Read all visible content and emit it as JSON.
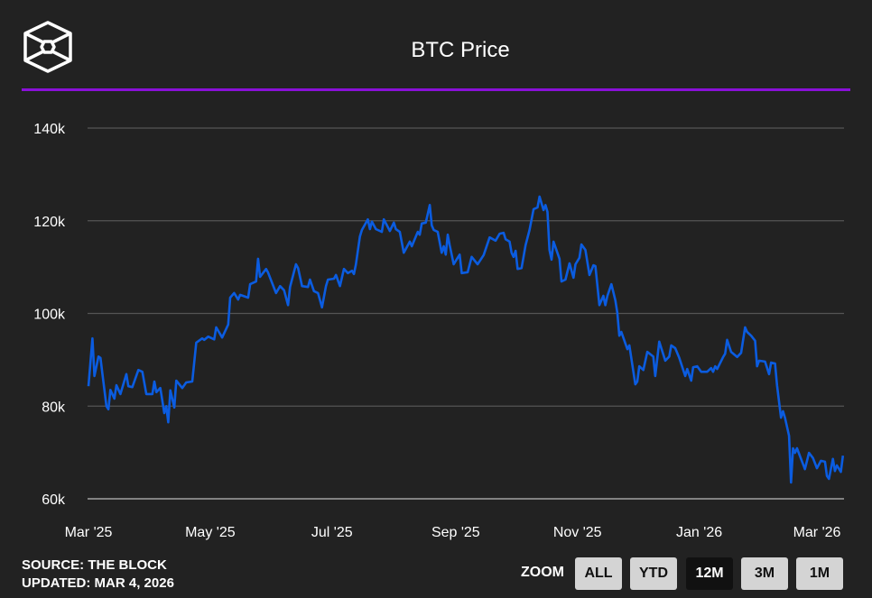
{
  "header": {
    "title": "BTC Price"
  },
  "colors": {
    "background": "#222222",
    "accent_rule": "#8a10d8",
    "line": "#0b5ce0",
    "grid": "#555555",
    "axis": "#bbbbbb"
  },
  "footer": {
    "source": "SOURCE: THE BLOCK",
    "updated": "UPDATED: MAR 4, 2026"
  },
  "zoom": {
    "label": "ZOOM",
    "buttons": [
      "ALL",
      "YTD",
      "12M",
      "3M",
      "1M"
    ],
    "selected": "12M"
  },
  "chart_data": {
    "type": "line",
    "title": "BTC Price",
    "xlabel": "",
    "ylabel": "",
    "x_unit": "days since Mar 1, 2025",
    "y_unit": "USD thousands",
    "ylim": [
      60,
      140
    ],
    "yticks": [
      {
        "value": 60,
        "label": "60k"
      },
      {
        "value": 80,
        "label": "80k"
      },
      {
        "value": 100,
        "label": "100k"
      },
      {
        "value": 120,
        "label": "120k"
      },
      {
        "value": 140,
        "label": "140k"
      }
    ],
    "xticks": [
      {
        "day": 0,
        "label": "Mar '25"
      },
      {
        "day": 61,
        "label": "May '25"
      },
      {
        "day": 122,
        "label": "Jul '25"
      },
      {
        "day": 184,
        "label": "Sep '25"
      },
      {
        "day": 245,
        "label": "Nov '25"
      },
      {
        "day": 306,
        "label": "Jan '26"
      },
      {
        "day": 365,
        "label": "Mar '26"
      }
    ],
    "xlim": [
      0,
      378
    ],
    "grid": true,
    "series": [
      {
        "name": "BTC Price",
        "x": [
          0,
          2,
          3,
          5,
          6,
          7,
          9,
          10,
          11,
          13,
          14,
          16,
          19,
          20,
          22,
          25,
          27,
          29,
          32,
          33,
          34,
          36,
          38,
          39,
          40,
          41,
          43,
          44,
          47,
          49,
          52,
          54,
          57,
          58,
          60,
          63,
          64,
          67,
          70,
          71,
          73,
          75,
          76,
          80,
          81,
          84,
          85,
          86,
          89,
          90,
          94,
          96,
          98,
          100,
          101,
          104,
          105,
          107,
          110,
          111,
          113,
          115,
          117,
          119,
          120,
          123,
          124,
          126,
          128,
          130,
          132,
          133,
          134,
          136,
          137,
          140,
          141,
          142,
          144,
          147,
          148,
          151,
          153,
          154,
          156,
          158,
          161,
          162,
          165,
          166,
          167,
          169,
          171,
          172,
          173,
          175,
          177,
          178,
          179,
          180,
          181,
          183,
          185,
          186,
          187,
          190,
          192,
          195,
          198,
          201,
          204,
          206,
          208,
          209,
          211,
          212,
          213,
          214,
          215,
          217,
          219,
          221,
          223,
          225,
          226,
          228,
          229,
          230,
          231,
          232,
          233,
          236,
          237,
          239,
          241,
          243,
          244,
          246,
          247,
          249,
          251,
          253,
          254,
          256,
          258,
          259,
          260,
          262,
          264,
          265,
          266,
          267,
          270,
          271,
          274,
          275,
          276,
          278,
          280,
          283,
          284,
          286,
          289,
          291,
          292,
          294,
          296,
          299,
          300,
          302,
          303,
          305,
          307,
          310,
          312,
          313,
          314,
          315,
          318,
          319,
          320,
          322,
          325,
          327,
          329,
          330,
          332,
          334,
          335,
          336,
          339,
          341,
          342,
          344,
          345,
          347,
          348,
          349,
          351,
          352,
          353,
          354,
          355,
          359,
          361,
          363,
          365,
          367,
          369,
          370,
          371,
          373,
          374,
          375,
          377,
          378
        ],
        "y": [
          84.3,
          94.6,
          86.5,
          90.7,
          90.4,
          86.9,
          80.0,
          79.3,
          83.5,
          81.6,
          84.5,
          82.6,
          86.9,
          84.3,
          84.1,
          87.8,
          87.4,
          82.6,
          82.6,
          85.3,
          83.0,
          83.9,
          78.5,
          80.0,
          76.5,
          83.4,
          79.7,
          85.5,
          83.9,
          85.1,
          85.3,
          93.7,
          94.6,
          94.3,
          95.0,
          94.4,
          97.0,
          94.8,
          97.6,
          103.4,
          104.4,
          103.0,
          104.0,
          103.4,
          106.3,
          106.9,
          111.8,
          107.9,
          109.6,
          108.8,
          104.4,
          105.9,
          105.0,
          101.8,
          105.7,
          110.6,
          109.8,
          105.9,
          105.7,
          107.3,
          104.8,
          104.4,
          101.3,
          105.9,
          107.3,
          107.5,
          108.3,
          105.9,
          109.6,
          108.7,
          109.2,
          108.5,
          110.6,
          116.6,
          118.0,
          120.3,
          118.2,
          119.8,
          118.2,
          117.6,
          120.3,
          117.8,
          119.6,
          118.2,
          117.6,
          113.1,
          115.5,
          114.5,
          117.6,
          117.0,
          119.4,
          119.6,
          123.4,
          119.0,
          118.0,
          117.6,
          113.1,
          114.5,
          112.7,
          117.0,
          114.7,
          110.6,
          112.0,
          112.7,
          108.7,
          108.9,
          112.2,
          110.6,
          112.6,
          116.4,
          115.7,
          117.2,
          117.4,
          116.0,
          115.5,
          113.1,
          112.2,
          113.5,
          109.6,
          109.8,
          114.7,
          118.0,
          122.5,
          122.9,
          125.2,
          122.3,
          123.4,
          121.9,
          113.7,
          111.6,
          115.5,
          111.8,
          106.9,
          107.3,
          110.8,
          107.7,
          110.6,
          112.0,
          114.9,
          113.7,
          108.3,
          110.4,
          110.2,
          101.8,
          103.8,
          101.8,
          103.8,
          106.3,
          102.8,
          100.1,
          95.2,
          96.0,
          92.3,
          93.1,
          84.7,
          85.3,
          88.6,
          87.8,
          91.7,
          90.7,
          86.5,
          93.9,
          89.8,
          90.7,
          93.1,
          92.5,
          90.4,
          86.5,
          88.0,
          85.5,
          88.4,
          88.6,
          87.4,
          87.4,
          88.2,
          87.4,
          88.6,
          88.0,
          90.6,
          91.3,
          94.3,
          91.7,
          90.6,
          91.5,
          97.0,
          96.0,
          95.2,
          94.1,
          88.6,
          89.8,
          89.6,
          86.9,
          89.4,
          89.2,
          84.5,
          77.5,
          78.9,
          77.5,
          73.6,
          63.5,
          70.9,
          69.9,
          70.9,
          66.4,
          69.9,
          68.8,
          66.6,
          68.2,
          68.0,
          64.9,
          64.3,
          68.6,
          66.0,
          67.2,
          65.8,
          69.3
        ]
      }
    ]
  }
}
